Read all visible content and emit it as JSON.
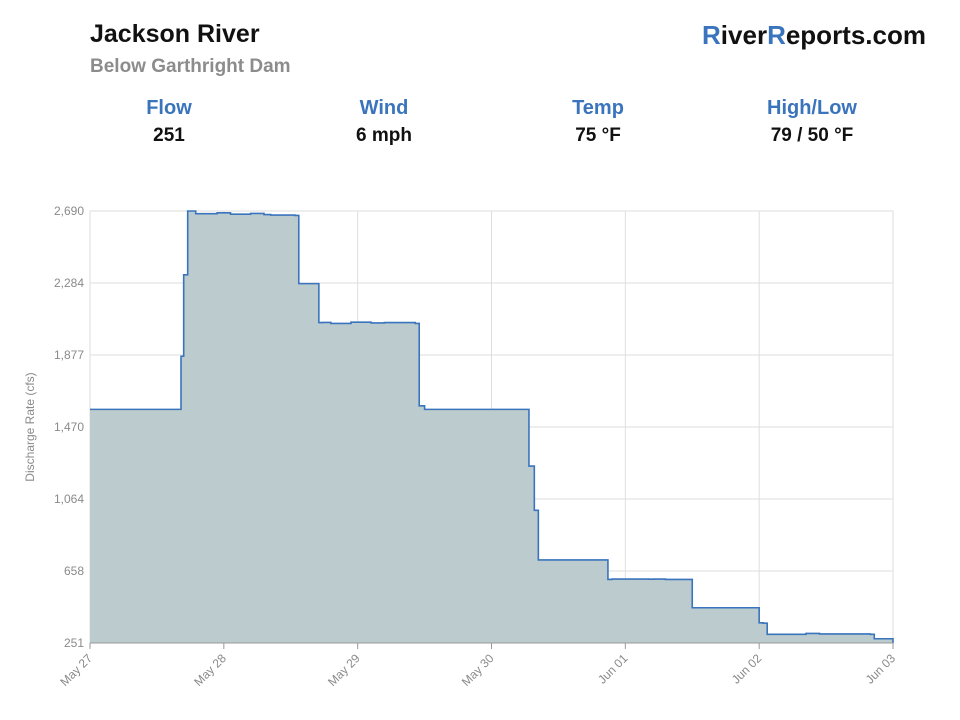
{
  "header": {
    "title": "Jackson River",
    "subtitle": "Below Garthright Dam",
    "brand_r1": "R",
    "brand_mid": "iver",
    "brand_r2": "R",
    "brand_end": "eports.com"
  },
  "stats": [
    {
      "label": "Flow",
      "value": "251"
    },
    {
      "label": "Wind",
      "value": "6 mph"
    },
    {
      "label": "Temp",
      "value": "75 °F"
    },
    {
      "label": "High/Low",
      "value": "79 / 50 °F"
    }
  ],
  "colors": {
    "accent": "#3a74bd",
    "line": "#3a74bd",
    "fill": "#bccbcd",
    "grid": "#dedede"
  },
  "chart_data": {
    "type": "area",
    "title": "",
    "xlabel": "",
    "ylabel": "Discharge Rate (cfs)",
    "x_unit": "days from May 27",
    "x_ticks": [
      "May 27",
      "May 28",
      "May 29",
      "May 30",
      "Jun 01",
      "Jun 02",
      "Jun 03"
    ],
    "y_ticks": [
      "251",
      "658",
      "1,064",
      "1,470",
      "1,877",
      "2,284",
      "2,690"
    ],
    "xlim": [
      0,
      6
    ],
    "ylim": [
      251,
      2690
    ],
    "grid": true,
    "series": [
      {
        "x": [
          0,
          0.65,
          0.68,
          0.7,
          0.73,
          0.79,
          0.95,
          1.05,
          1.2,
          1.3,
          1.35,
          1.53,
          1.56,
          1.71,
          1.74,
          1.8,
          1.95,
          2.1,
          2.2,
          2.3,
          2.43,
          2.46,
          2.5,
          3.25,
          3.28,
          3.32,
          3.35,
          3.87,
          3.9,
          4.18,
          4.21,
          4.3,
          4.4,
          4.5,
          5.0,
          5.03,
          5.06,
          5.2,
          5.35,
          5.45,
          5.8,
          5.83,
          5.86,
          6.0
        ],
        "y": [
          1570,
          1570,
          1870,
          2330,
          2690,
          2675,
          2680,
          2672,
          2676,
          2670,
          2667,
          2665,
          2280,
          2060,
          2061,
          2055,
          2062,
          2058,
          2060,
          2060,
          2055,
          1590,
          1570,
          1570,
          1250,
          1000,
          720,
          610,
          612,
          611,
          612,
          610,
          610,
          450,
          365,
          363,
          300,
          300,
          305,
          302,
          302,
          300,
          275,
          251
        ]
      }
    ]
  }
}
